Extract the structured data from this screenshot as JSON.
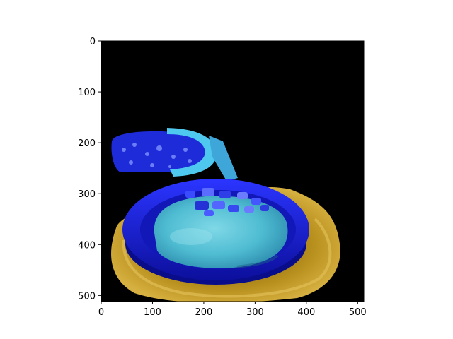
{
  "figure": {
    "background_color": "#ffffff",
    "image_background": "#000000",
    "x_axis": {
      "range": [
        0,
        512
      ],
      "ticks": [
        {
          "value": 0,
          "label": "0"
        },
        {
          "value": 100,
          "label": "100"
        },
        {
          "value": 200,
          "label": "200"
        },
        {
          "value": 300,
          "label": "300"
        },
        {
          "value": 400,
          "label": "400"
        },
        {
          "value": 500,
          "label": "500"
        }
      ]
    },
    "y_axis": {
      "range": [
        0,
        512
      ],
      "inverted": true,
      "ticks": [
        {
          "value": 0,
          "label": "0"
        },
        {
          "value": 100,
          "label": "100"
        },
        {
          "value": 200,
          "label": "200"
        },
        {
          "value": 300,
          "label": "300"
        },
        {
          "value": 400,
          "label": "400"
        },
        {
          "value": 500,
          "label": "500"
        }
      ]
    },
    "colors": {
      "bowl_blue": "#1a1fd6",
      "bowl_rim": "#2a33ff",
      "dip_cyan": "#5cc6d9",
      "plate_gold": "#b88a1c",
      "toast_cyan": "#46c6e6"
    }
  }
}
